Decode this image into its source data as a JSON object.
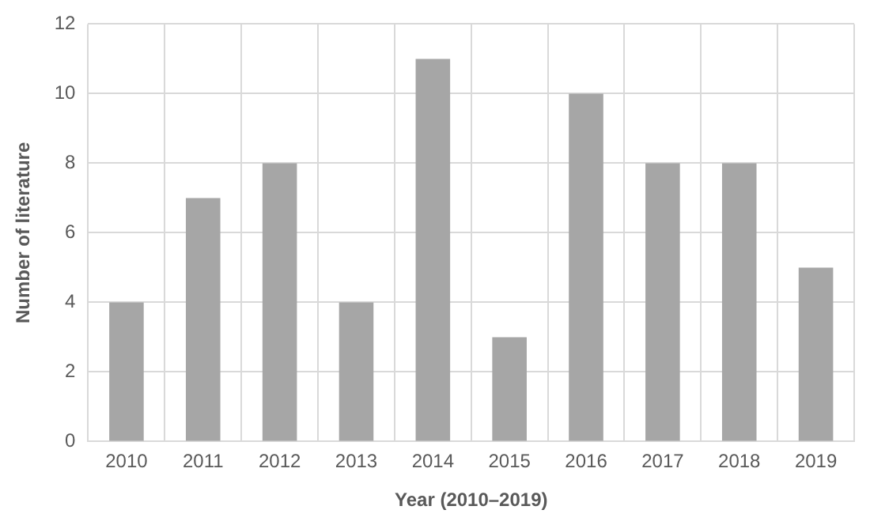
{
  "chart_data": {
    "type": "bar",
    "xlabel": "Year (2010–2019)",
    "ylabel": "Number of literature",
    "categories": [
      "2010",
      "2011",
      "2012",
      "2013",
      "2014",
      "2015",
      "2016",
      "2017",
      "2018",
      "2019"
    ],
    "values": [
      4,
      7,
      8,
      4,
      11,
      3,
      10,
      8,
      8,
      5
    ],
    "color": "#a6a6a6",
    "ylim": [
      0,
      12
    ],
    "yticks": [
      0,
      2,
      4,
      6,
      8,
      10,
      12
    ],
    "grid": true
  }
}
